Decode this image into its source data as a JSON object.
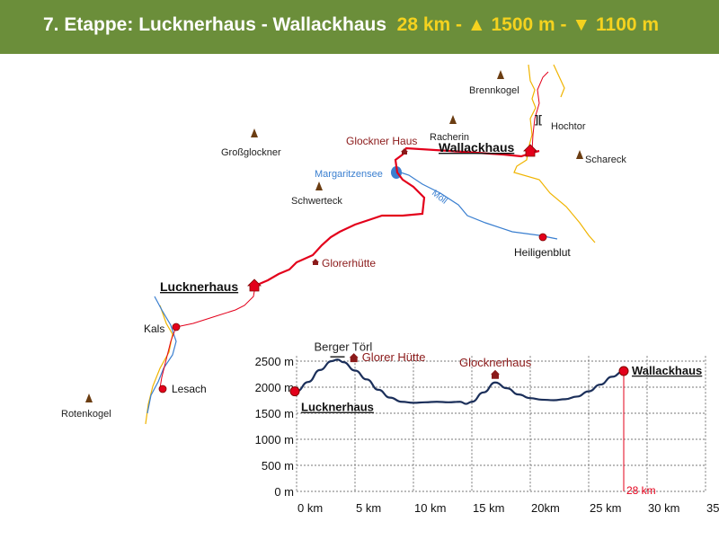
{
  "header": {
    "title": "7. Etappe: Lucknerhaus - Wallackhaus",
    "stats": "28 km - ▲ 1500 m - ▼ 1100 m",
    "background": "#6b8e3a",
    "stats_color": "#f4d21f"
  },
  "map": {
    "peaks": {
      "brennkogel": "Brennkogel",
      "racherin": "Racherin",
      "hochtor": "Hochtor",
      "schareck": "Schareck",
      "grossglockner": "Großglockner",
      "schwerteck": "Schwerteck",
      "rotenkogel": "Rotenkogel"
    },
    "huts": {
      "glockner_haus": "Glockner Haus",
      "glorerhuette": "Glorerhütte"
    },
    "places": {
      "wallackhaus": "Wallackhaus",
      "lucknerhaus": "Lucknerhaus",
      "heiligenblut": "Heiligenblut",
      "kals": "Kals",
      "lesach": "Lesach"
    },
    "water": {
      "margaritzensee": "Margaritzensee",
      "moell": "Möll"
    },
    "colors": {
      "route": "#e3001b",
      "road": "#f0b400",
      "river": "#3a7fd0",
      "peak": "#6b3d12",
      "hut": "#8b1a1a"
    }
  },
  "profile": {
    "y_ticks": [
      "2500 m",
      "2000 m",
      "1500 m",
      "1000 m",
      "500 m",
      "0 m"
    ],
    "x_ticks": [
      "0 km",
      "5 km",
      "10 km",
      "15 km",
      "20km",
      "25 km",
      "30 km",
      "35 km"
    ],
    "labels": {
      "start": "Lucknerhaus",
      "end": "Wallackhaus",
      "berger_toerl": "Berger Törl",
      "glorer_huette": "Glorer Hütte",
      "glocknerhaus": "Glocknerhaus",
      "distance": "28 km"
    },
    "elevation_km": [
      0,
      1,
      2,
      3,
      3.5,
      4,
      5,
      6,
      7,
      8,
      9,
      10,
      11,
      12,
      13,
      14,
      14.5,
      15,
      16,
      17,
      18,
      19,
      20,
      21,
      22,
      23,
      24,
      25,
      26,
      27,
      28
    ],
    "elevation_m": [
      1920,
      2100,
      2330,
      2500,
      2530,
      2480,
      2320,
      2150,
      1950,
      1800,
      1720,
      1700,
      1710,
      1720,
      1710,
      1720,
      1680,
      1720,
      1900,
      2090,
      1980,
      1860,
      1790,
      1760,
      1750,
      1770,
      1820,
      1920,
      2050,
      2200,
      2310
    ]
  }
}
